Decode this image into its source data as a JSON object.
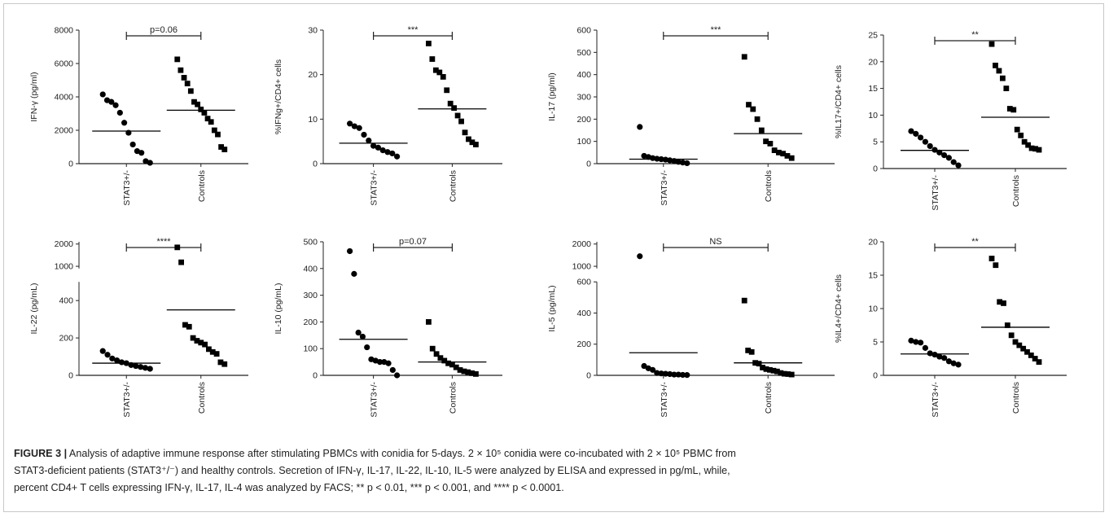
{
  "chart_data": [
    {
      "type": "scatter",
      "ylabel": "IFN-γ (pg/ml)",
      "yticks": [
        0,
        2000,
        4000,
        6000,
        8000
      ],
      "ylim": [
        0,
        8000
      ],
      "categories": [
        "STAT3+/-",
        "Controls"
      ],
      "significance": "p=0.06",
      "series": [
        {
          "name": "STAT3+/-",
          "marker": "circle",
          "mean": 1950,
          "values": [
            4150,
            3800,
            3700,
            3500,
            3050,
            2450,
            1850,
            1150,
            750,
            650,
            150,
            50
          ]
        },
        {
          "name": "Controls",
          "marker": "square",
          "mean": 3200,
          "values": [
            6250,
            5600,
            5150,
            4800,
            4350,
            3700,
            3550,
            3250,
            3050,
            2700,
            2500,
            2000,
            1750,
            1000,
            850
          ]
        }
      ]
    },
    {
      "type": "scatter",
      "ylabel": "%IFNg+/CD4+ cells",
      "yticks": [
        0,
        10,
        20,
        30
      ],
      "ylim": [
        0,
        30
      ],
      "categories": [
        "STAT3+/-",
        "Controls"
      ],
      "significance": "***",
      "series": [
        {
          "name": "STAT3+/-",
          "marker": "circle",
          "mean": 4.6,
          "values": [
            9.0,
            8.4,
            8.0,
            6.5,
            5.2,
            4.0,
            3.6,
            3.0,
            2.6,
            2.3,
            1.6
          ]
        },
        {
          "name": "Controls",
          "marker": "square",
          "mean": 12.3,
          "values": [
            27,
            23.5,
            21,
            20.5,
            19.5,
            16.5,
            13.5,
            12.5,
            10.8,
            9.5,
            7.0,
            5.5,
            4.8,
            4.3
          ]
        }
      ]
    },
    {
      "type": "scatter",
      "ylabel": "IL-17 (pg/ml)",
      "yticks": [
        0,
        100,
        200,
        300,
        400,
        500,
        600
      ],
      "ylim": [
        0,
        600
      ],
      "categories": [
        "STAT3+/-",
        "Controls"
      ],
      "significance": "***",
      "series": [
        {
          "name": "STAT3+/-",
          "marker": "circle",
          "mean": 20,
          "values": [
            165,
            35,
            30,
            25,
            22,
            20,
            18,
            15,
            12,
            8,
            5,
            2
          ]
        },
        {
          "name": "Controls",
          "marker": "square",
          "mean": 135,
          "values": [
            480,
            265,
            245,
            200,
            150,
            100,
            90,
            60,
            50,
            45,
            35,
            25
          ]
        }
      ]
    },
    {
      "type": "scatter",
      "ylabel": "%IL17+/CD4+ cells",
      "yticks": [
        0,
        5,
        10,
        15,
        20,
        25
      ],
      "ylim": [
        0,
        25
      ],
      "categories": [
        "STAT3+/-",
        "Controls"
      ],
      "significance": "**",
      "series": [
        {
          "name": "STAT3+/-",
          "marker": "circle",
          "mean": 3.4,
          "values": [
            7.0,
            6.5,
            5.8,
            5.0,
            4.2,
            3.5,
            3.0,
            2.5,
            2.0,
            1.2,
            0.6
          ]
        },
        {
          "name": "Controls",
          "marker": "square",
          "mean": 9.6,
          "values": [
            23.3,
            19.3,
            18.3,
            16.9,
            15.0,
            11.2,
            11.0,
            7.3,
            6.2,
            5.0,
            4.4,
            3.8,
            3.7,
            3.5
          ]
        }
      ]
    },
    {
      "type": "scatter",
      "ylabel": "IL-22 (pg/mL)",
      "yticks": [
        0,
        200,
        400
      ],
      "ylim": [
        0,
        500
      ],
      "break": {
        "yticks": [
          1000,
          2000
        ],
        "range": [
          900,
          2100
        ]
      },
      "categories": [
        "STAT3+/-",
        "Controls"
      ],
      "significance": "****",
      "series": [
        {
          "name": "STAT3+/-",
          "marker": "circle",
          "mean": 65,
          "values": [
            130,
            110,
            90,
            80,
            70,
            65,
            55,
            50,
            45,
            40,
            35
          ]
        },
        {
          "name": "Controls",
          "marker": "square",
          "mean": 350,
          "values": [
            1850,
            1180,
            270,
            260,
            200,
            185,
            175,
            165,
            140,
            125,
            115,
            70,
            60
          ]
        }
      ]
    },
    {
      "type": "scatter",
      "ylabel": "IL-10 (pg/mL)",
      "yticks": [
        0,
        100,
        200,
        300,
        400,
        500
      ],
      "ylim": [
        0,
        500
      ],
      "categories": [
        "STAT3+/-",
        "Controls"
      ],
      "significance": "p=0.07",
      "series": [
        {
          "name": "STAT3+/-",
          "marker": "circle",
          "mean": 135,
          "values": [
            465,
            380,
            160,
            145,
            105,
            60,
            55,
            50,
            50,
            45,
            20,
            0
          ]
        },
        {
          "name": "Controls",
          "marker": "square",
          "mean": 50,
          "values": [
            200,
            100,
            80,
            65,
            55,
            45,
            40,
            30,
            20,
            15,
            12,
            8,
            5
          ]
        }
      ]
    },
    {
      "type": "scatter",
      "ylabel": "IL-5 (pg/mL)",
      "yticks": [
        0,
        200,
        400,
        600
      ],
      "ylim": [
        0,
        600
      ],
      "break": {
        "yticks": [
          1000,
          2000
        ],
        "range": [
          900,
          2100
        ]
      },
      "categories": [
        "STAT3+/-",
        "Controls"
      ],
      "significance": "NS",
      "series": [
        {
          "name": "STAT3+/-",
          "marker": "circle",
          "mean": 145,
          "values": [
            1450,
            60,
            45,
            35,
            15,
            12,
            10,
            8,
            5,
            5,
            3,
            2
          ]
        },
        {
          "name": "Controls",
          "marker": "square",
          "mean": 80,
          "values": [
            480,
            160,
            150,
            80,
            75,
            50,
            40,
            35,
            30,
            25,
            15,
            10,
            8,
            5
          ]
        }
      ]
    },
    {
      "type": "scatter",
      "ylabel": "%IL4+/CD4+ cells",
      "yticks": [
        0,
        5,
        10,
        15,
        20
      ],
      "ylim": [
        0,
        20
      ],
      "categories": [
        "STAT3+/-",
        "Controls"
      ],
      "significance": "**",
      "series": [
        {
          "name": "STAT3+/-",
          "marker": "circle",
          "mean": 3.2,
          "values": [
            5.2,
            5.0,
            4.9,
            4.1,
            3.3,
            3.1,
            2.8,
            2.6,
            2.1,
            1.8,
            1.6
          ]
        },
        {
          "name": "Controls",
          "marker": "square",
          "mean": 7.2,
          "values": [
            17.5,
            16.5,
            11.0,
            10.8,
            7.5,
            6.0,
            5.0,
            4.5,
            4.0,
            3.5,
            3.0,
            2.5,
            2.0
          ]
        }
      ]
    }
  ],
  "caption": {
    "figure_label": "FIGURE 3 |",
    "line1": "Analysis of adaptive immune response after stimulating PBMCs with conidia for 5-days. 2 × 10⁵ conidia were co-incubated with 2 × 10⁵ PBMC from",
    "line2": "STAT3-deficient patients (STAT3⁺/⁻) and healthy controls. Secretion of IFN-γ, IL-17, IL-22, IL-10, IL-5 were analyzed by ELISA and expressed in pg/mL, while,",
    "line3": "percent CD4+ T cells expressing IFN-γ, IL-17, IL-4 was analyzed by FACS; ** p < 0.01, *** p < 0.001, and **** p < 0.0001."
  }
}
